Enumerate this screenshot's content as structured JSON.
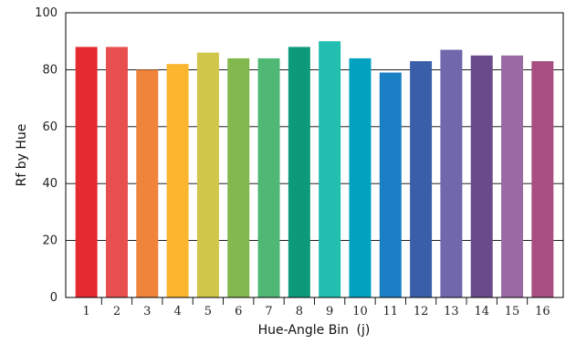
{
  "chart_data": {
    "type": "bar",
    "title": "",
    "xlabel": "Hue-Angle Bin",
    "xlabel_suffix": "(j)",
    "ylabel": "Rf by Hue",
    "ylim": [
      0,
      100
    ],
    "yticks": [
      0,
      20,
      40,
      60,
      80,
      100
    ],
    "grid": true,
    "categories": [
      "1",
      "2",
      "3",
      "4",
      "5",
      "6",
      "7",
      "8",
      "9",
      "10",
      "11",
      "12",
      "13",
      "14",
      "15",
      "16"
    ],
    "values": [
      88,
      88,
      80,
      82,
      86,
      84,
      84,
      88,
      90,
      84,
      79,
      83,
      87,
      85,
      85,
      83
    ],
    "colors": [
      "#e52b2f",
      "#e85050",
      "#f0843a",
      "#fbb52e",
      "#cfc64a",
      "#83b84e",
      "#4eb874",
      "#0d9a7a",
      "#22bfb0",
      "#00a2c0",
      "#1a7fc4",
      "#3a5fa8",
      "#6f68ad",
      "#6a4a8a",
      "#9a6aa4",
      "#a64f80"
    ]
  }
}
